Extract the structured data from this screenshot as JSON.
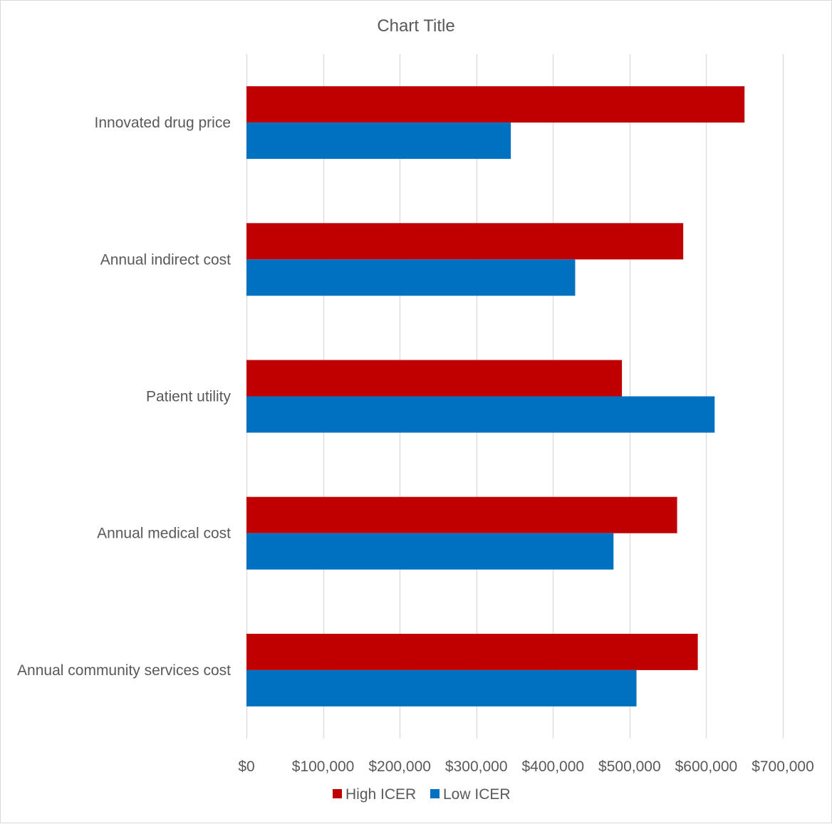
{
  "chart_data": {
    "type": "bar",
    "orientation": "horizontal",
    "title": "Chart Title",
    "categories": [
      "Innovated drug price",
      "Annual indirect cost",
      "Patient utility",
      "Annual medical cost",
      "Annual community services cost"
    ],
    "series": [
      {
        "name": "High ICER",
        "color": "#c00000",
        "values": [
          650000,
          570000,
          490000,
          562000,
          589000
        ]
      },
      {
        "name": "Low ICER",
        "color": "#0070c0",
        "values": [
          345000,
          429000,
          611000,
          479000,
          509000
        ]
      }
    ],
    "xlim": [
      0,
      700000
    ],
    "x_ticks": [
      0,
      100000,
      200000,
      300000,
      400000,
      500000,
      600000,
      700000
    ],
    "x_tick_labels": [
      "$0",
      "$100,000",
      "$200,000",
      "$300,000",
      "$400,000",
      "$500,000",
      "$600,000",
      "$700,000"
    ],
    "grid": "vertical",
    "grid_color": "#d9d9d9",
    "legend_position": "bottom",
    "text_color": "#595959"
  }
}
